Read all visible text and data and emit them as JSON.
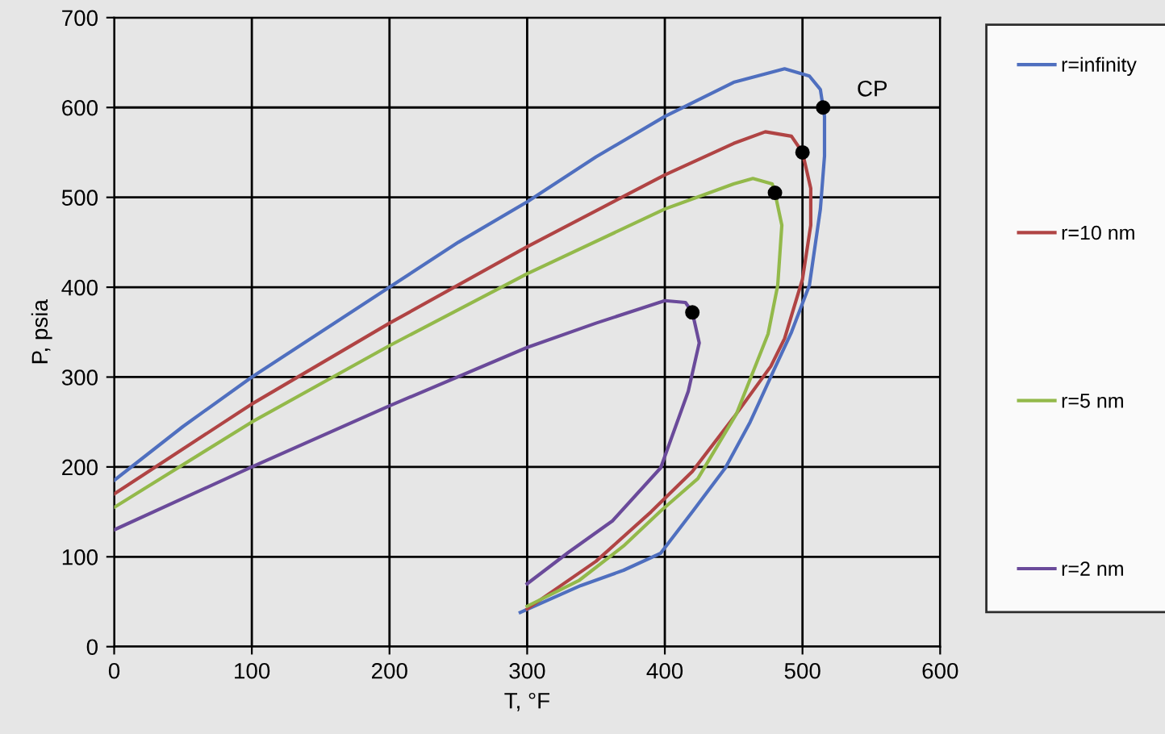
{
  "chart_data": {
    "type": "line",
    "xlabel": "T, °F",
    "ylabel": "P, psia",
    "xlim": [
      0,
      600
    ],
    "ylim": [
      0,
      700
    ],
    "xticks": [
      0,
      100,
      200,
      300,
      400,
      500,
      600
    ],
    "yticks": [
      0,
      100,
      200,
      300,
      400,
      500,
      600,
      700
    ],
    "grid": true,
    "legend": "right",
    "marker": "none",
    "line_style": "solid",
    "series": [
      {
        "name": "r=infinity",
        "color": "#4f6fbf",
        "x": [
          0,
          50,
          100,
          150,
          200,
          250,
          300,
          350,
          400,
          450,
          487,
          505,
          513,
          516,
          516,
          513,
          505,
          492,
          479,
          462,
          444,
          420,
          397,
          370,
          339,
          295
        ],
        "values": [
          185,
          245,
          300,
          350,
          400,
          450,
          495,
          545,
          590,
          628,
          643,
          635,
          620,
          590,
          546,
          487,
          402,
          350,
          307,
          250,
          199,
          150,
          104,
          85,
          68,
          38
        ]
      },
      {
        "name": "r=10 nm",
        "color": "#b04444",
        "x": [
          0,
          100,
          200,
          300,
          400,
          450,
          473,
          492,
          500,
          506,
          506,
          500,
          487,
          477,
          450,
          420,
          390,
          350,
          300
        ],
        "values": [
          170,
          270,
          360,
          445,
          525,
          560,
          573,
          568,
          550,
          510,
          469,
          409,
          343,
          312,
          255,
          195,
          150,
          95,
          42
        ]
      },
      {
        "name": "r=5 nm",
        "color": "#93b94a",
        "x": [
          0,
          100,
          200,
          300,
          400,
          450,
          464,
          478,
          480,
          485,
          482,
          475,
          452,
          424,
          397,
          370,
          338,
          300
        ],
        "values": [
          155,
          250,
          335,
          415,
          487,
          515,
          521,
          515,
          505,
          469,
          402,
          348,
          259,
          187,
          151,
          112,
          74,
          45
        ]
      },
      {
        "name": "r=2 nm",
        "color": "#6a4a9a",
        "x": [
          0,
          100,
          200,
          300,
          350,
          400,
          415,
          420,
          425,
          417,
          397,
          362,
          330,
          300
        ],
        "values": [
          130,
          200,
          268,
          333,
          360,
          385,
          383,
          372,
          338,
          284,
          199,
          140,
          105,
          70
        ]
      },
      {
        "type": "scatter",
        "marker": "circle",
        "color": "#000000",
        "x": [
          515,
          500,
          480,
          420
        ],
        "values": [
          600,
          550,
          505,
          372
        ]
      }
    ],
    "annotations": [
      {
        "text": "CP",
        "x": 515,
        "y": 600
      }
    ]
  }
}
